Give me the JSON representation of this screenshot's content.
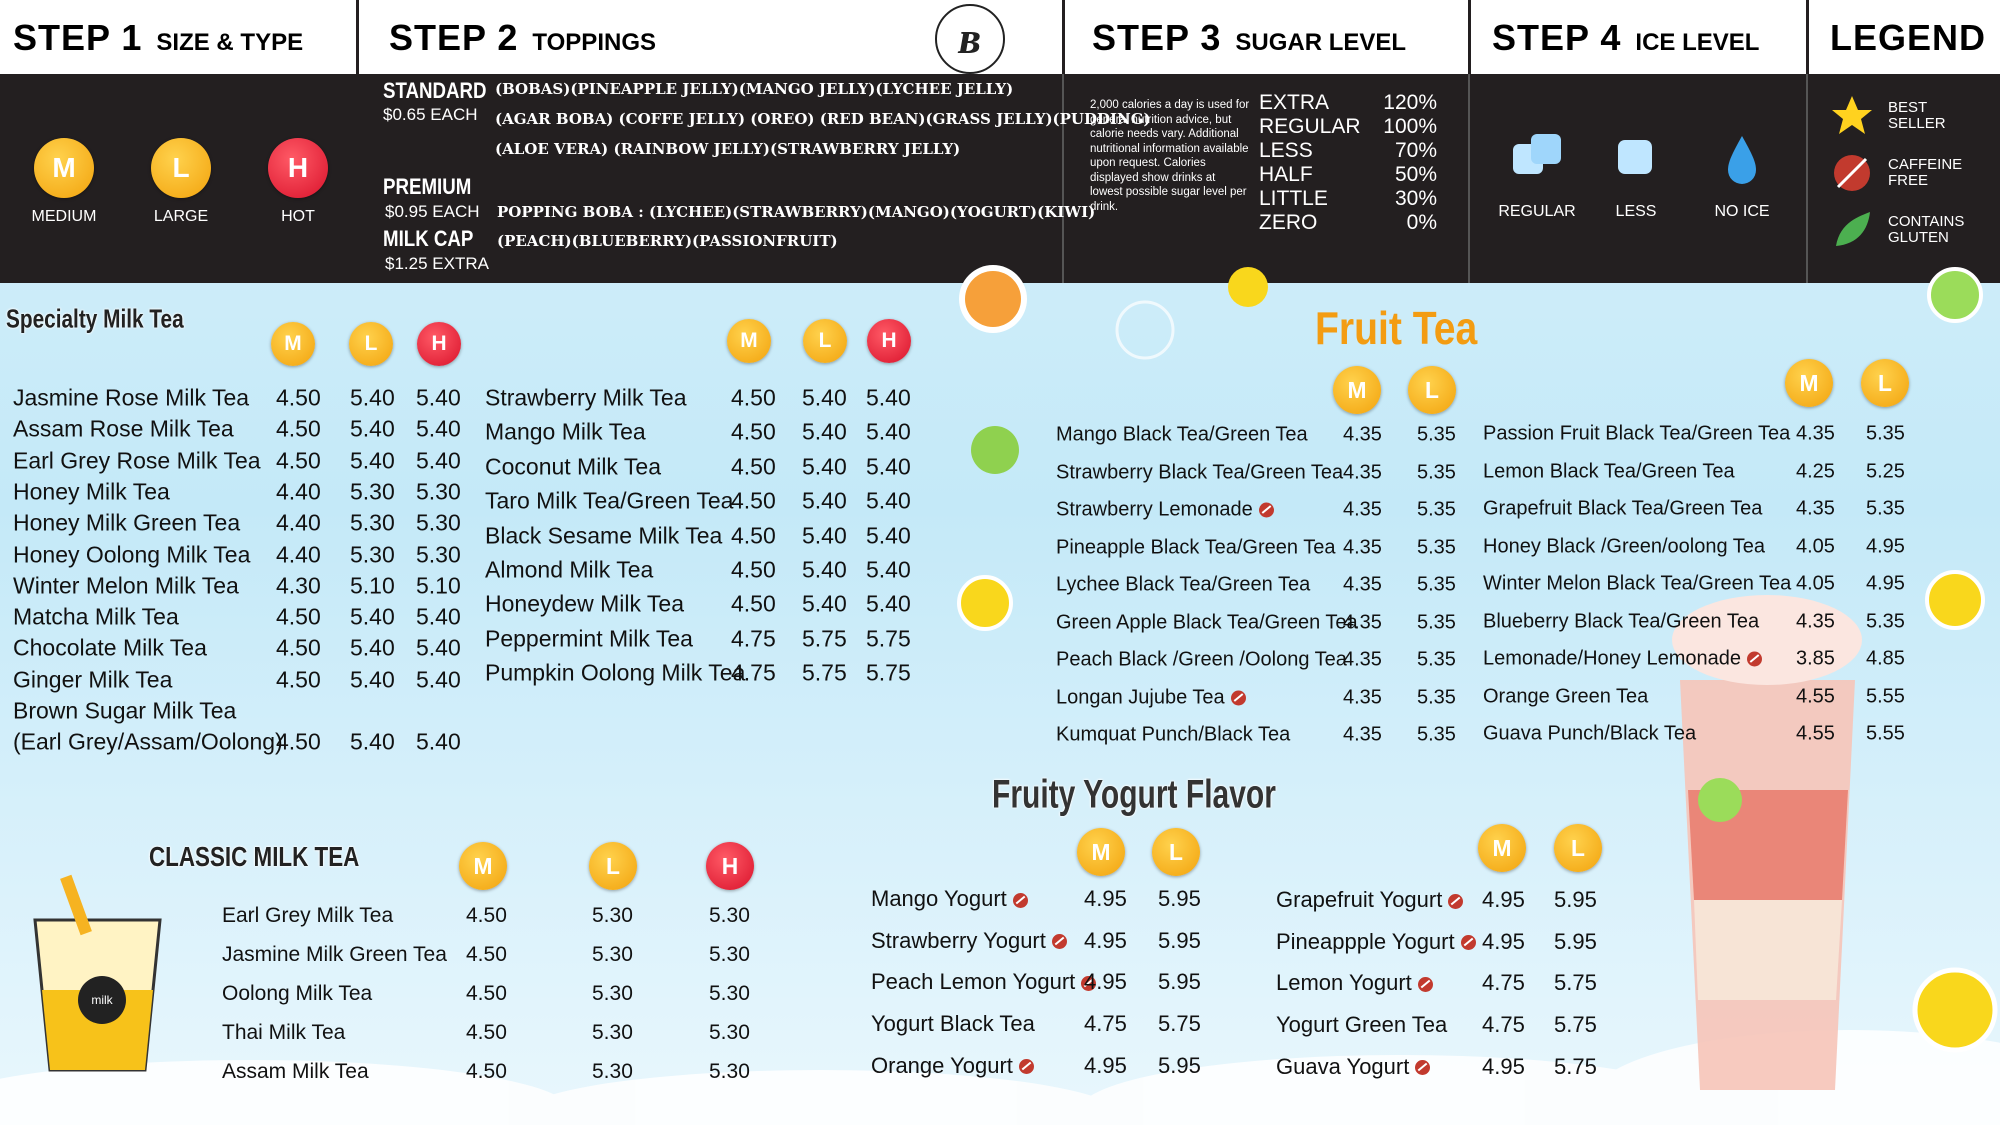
{
  "header": {
    "steps": [
      {
        "number": "STEP 1",
        "name": "SIZE & TYPE"
      },
      {
        "number": "STEP 2",
        "name": "TOPPINGS"
      },
      {
        "number": "STEP 3",
        "name": "SUGAR LEVEL"
      },
      {
        "number": "STEP 4",
        "name": "ICE LEVEL"
      },
      {
        "number": "LEGEND"
      }
    ],
    "sizes": [
      {
        "badge": "M",
        "label": "MEDIUM"
      },
      {
        "badge": "L",
        "label": "LARGE"
      },
      {
        "badge": "H",
        "label": "HOT"
      }
    ],
    "toppings": {
      "standard": {
        "name": "STANDARD",
        "price": "$0.65 EACH",
        "lines": [
          "(BOBAS)(PINEAPPLE JELLY)(MANGO JELLY)(LYCHEE JELLY)",
          "(AGAR BOBA) (COFFE JELLY) (OREO) (RED BEAN)(GRASS JELLY)(PUDDING)",
          "(ALOE VERA)  (RAINBOW JELLY)(STRAWBERRY JELLY)"
        ]
      },
      "premium": {
        "name": "PREMIUM",
        "price": "$0.95 EACH",
        "lines": [
          "POPPING BOBA : (LYCHEE)(STRAWBERRY)(MANGO)(YOGURT)(KIWI)",
          "(PEACH)(BLUEBERRY)(PASSIONFRUIT)"
        ]
      },
      "milk_cap": {
        "name": "MILK CAP",
        "price": "$1.25 EXTRA"
      }
    },
    "sugar": {
      "note": "2,000 calories a day is used for general nutrition advice, but calorie needs vary. Additional nutritional information available upon request. Calories displayed show drinks at lowest possible sugar level per drink.",
      "levels": [
        {
          "name": "EXTRA",
          "percent": "120%"
        },
        {
          "name": "REGULAR",
          "percent": "100%"
        },
        {
          "name": "LESS",
          "percent": "70%"
        },
        {
          "name": "HALF",
          "percent": "50%"
        },
        {
          "name": "LITTLE",
          "percent": "30%"
        },
        {
          "name": "ZERO",
          "percent": "0%"
        }
      ]
    },
    "ice": [
      "REGULAR",
      "LESS",
      "NO ICE"
    ],
    "legend": [
      "BEST SELLER",
      "CAFFEINE FREE",
      "CONTAINS GLUTEN"
    ]
  },
  "menu": {
    "specialty": {
      "title": "Specialty Milk Tea",
      "columns": [
        {
          "sizes": [
            "M",
            "L",
            "H"
          ],
          "items": [
            {
              "name": "Jasmine Rose Milk Tea",
              "prices": [
                "4.50",
                "5.40",
                "5.40"
              ]
            },
            {
              "name": "Assam Rose Milk Tea",
              "prices": [
                "4.50",
                "5.40",
                "5.40"
              ]
            },
            {
              "name": "Earl Grey Rose Milk Tea",
              "prices": [
                "4.50",
                "5.40",
                "5.40"
              ]
            },
            {
              "name": "Honey Milk Tea",
              "prices": [
                "4.40",
                "5.30",
                "5.30"
              ]
            },
            {
              "name": "Honey Milk Green Tea",
              "prices": [
                "4.40",
                "5.30",
                "5.30"
              ]
            },
            {
              "name": "Honey Oolong Milk  Tea",
              "prices": [
                "4.40",
                "5.30",
                "5.30"
              ]
            },
            {
              "name": "Winter Melon Milk Tea",
              "prices": [
                "4.30",
                "5.10",
                "5.10"
              ]
            },
            {
              "name": "Matcha Milk Tea",
              "prices": [
                "4.50",
                "5.40",
                "5.40"
              ]
            },
            {
              "name": "Chocolate Milk Tea",
              "prices": [
                "4.50",
                "5.40",
                "5.40"
              ]
            },
            {
              "name": "Ginger Milk Tea",
              "prices": [
                "4.50",
                "5.40",
                "5.40"
              ]
            },
            {
              "name": "Brown Sugar Milk Tea",
              "detail": "(Earl Grey/Assam/Oolong)",
              "prices": [
                "4.50",
                "5.40",
                "5.40"
              ]
            }
          ]
        },
        {
          "sizes": [
            "M",
            "L",
            "H"
          ],
          "items": [
            {
              "name": "Strawberry  Milk Tea",
              "prices": [
                "4.50",
                "5.40",
                "5.40"
              ]
            },
            {
              "name": "Mango Milk Tea",
              "prices": [
                "4.50",
                "5.40",
                "5.40"
              ]
            },
            {
              "name": "Coconut Milk Tea",
              "prices": [
                "4.50",
                "5.40",
                "5.40"
              ]
            },
            {
              "name": "Taro Milk Tea/Green Tea",
              "prices": [
                "4.50",
                "5.40",
                "5.40"
              ]
            },
            {
              "name": "Black Sesame Milk Tea",
              "prices": [
                "4.50",
                "5.40",
                "5.40"
              ]
            },
            {
              "name": "Almond Milk Tea",
              "prices": [
                "4.50",
                "5.40",
                "5.40"
              ]
            },
            {
              "name": "Honeydew Milk Tea",
              "prices": [
                "4.50",
                "5.40",
                "5.40"
              ]
            },
            {
              "name": "Peppermint Milk Tea",
              "prices": [
                "4.75",
                "5.75",
                "5.75"
              ]
            },
            {
              "name": "Pumpkin Oolong Milk Tea",
              "prices": [
                "4.75",
                "5.75",
                "5.75"
              ]
            }
          ]
        }
      ]
    },
    "fruit_tea": {
      "title": "Fruit Tea",
      "columns": [
        {
          "sizes": [
            "M",
            "L"
          ],
          "items": [
            {
              "name": "Mango Black Tea/Green Tea",
              "prices": [
                "4.35",
                "5.35"
              ]
            },
            {
              "name": "Strawberry Black Tea/Green Tea",
              "prices": [
                "4.35",
                "5.35"
              ]
            },
            {
              "name": "Strawberry Lemonade",
              "caffeine_free": true,
              "prices": [
                "4.35",
                "5.35"
              ]
            },
            {
              "name": "Pineapple Black Tea/Green Tea",
              "prices": [
                "4.35",
                "5.35"
              ]
            },
            {
              "name": "Lychee Black Tea/Green Tea",
              "prices": [
                "4.35",
                "5.35"
              ]
            },
            {
              "name": "Green Apple Black Tea/Green Tea",
              "prices": [
                "4.35",
                "5.35"
              ]
            },
            {
              "name": "Peach Black /Green /Oolong Tea",
              "prices": [
                "4.35",
                "5.35"
              ]
            },
            {
              "name": "Longan Jujube Tea",
              "caffeine_free": true,
              "prices": [
                "4.35",
                "5.35"
              ]
            },
            {
              "name": "Kumquat Punch/Black Tea",
              "prices": [
                "4.35",
                "5.35"
              ]
            }
          ]
        },
        {
          "sizes": [
            "M",
            "L"
          ],
          "items": [
            {
              "name": "Passion Fruit Black Tea/Green Tea",
              "prices": [
                "4.35",
                "5.35"
              ]
            },
            {
              "name": "Lemon Black Tea/Green Tea",
              "prices": [
                "4.25",
                "5.25"
              ]
            },
            {
              "name": "Grapefruit Black Tea/Green Tea",
              "prices": [
                "4.35",
                "5.35"
              ]
            },
            {
              "name": "Honey Black /Green/oolong Tea",
              "prices": [
                "4.05",
                "4.95"
              ]
            },
            {
              "name": "Winter Melon Black Tea/Green Tea",
              "prices": [
                "4.05",
                "4.95"
              ]
            },
            {
              "name": "Blueberry Black Tea/Green Tea",
              "prices": [
                "4.35",
                "5.35"
              ]
            },
            {
              "name": "Lemonade/Honey Lemonade",
              "caffeine_free": true,
              "prices": [
                "3.85",
                "4.85"
              ]
            },
            {
              "name": "Orange Green Tea",
              "prices": [
                "4.55",
                "5.55"
              ]
            },
            {
              "name": "Guava Punch/Black Tea",
              "prices": [
                "4.55",
                "5.55"
              ]
            }
          ]
        }
      ]
    },
    "fruity_yogurt": {
      "title": "Fruity Yogurt Flavor",
      "columns": [
        {
          "sizes": [
            "M",
            "L"
          ],
          "items": [
            {
              "name": "Mango Yogurt",
              "caffeine_free": true,
              "prices": [
                "4.95",
                "5.95"
              ]
            },
            {
              "name": "Strawberry Yogurt",
              "caffeine_free": true,
              "prices": [
                "4.95",
                "5.95"
              ]
            },
            {
              "name": "Peach Lemon Yogurt",
              "caffeine_free": true,
              "prices": [
                "4.95",
                "5.95"
              ]
            },
            {
              "name": "Yogurt Black Tea",
              "prices": [
                "4.75",
                "5.75"
              ]
            },
            {
              "name": "Orange Yogurt",
              "caffeine_free": true,
              "prices": [
                "4.95",
                "5.95"
              ]
            }
          ]
        },
        {
          "sizes": [
            "M",
            "L"
          ],
          "items": [
            {
              "name": "Grapefruit Yogurt",
              "caffeine_free": true,
              "prices": [
                "4.95",
                "5.95"
              ]
            },
            {
              "name": "Pineappple Yogurt",
              "caffeine_free": true,
              "prices": [
                "4.95",
                "5.95"
              ]
            },
            {
              "name": "Lemon Yogurt",
              "caffeine_free": true,
              "prices": [
                "4.75",
                "5.75"
              ]
            },
            {
              "name": "Yogurt Green Tea",
              "prices": [
                "4.75",
                "5.75"
              ]
            },
            {
              "name": "Guava Yogurt",
              "caffeine_free": true,
              "prices": [
                "4.95",
                "5.75"
              ]
            }
          ]
        }
      ]
    },
    "classic": {
      "title": "CLASSIC MILK TEA",
      "columns": [
        {
          "sizes": [
            "M",
            "L",
            "H"
          ],
          "items": [
            {
              "name": "Earl Grey Milk Tea",
              "prices": [
                "4.50",
                "5.30",
                "5.30"
              ]
            },
            {
              "name": "Jasmine Milk Green Tea",
              "prices": [
                "4.50",
                "5.30",
                "5.30"
              ]
            },
            {
              "name": "Oolong Milk Tea",
              "prices": [
                "4.50",
                "5.30",
                "5.30"
              ]
            },
            {
              "name": "Thai Milk Tea",
              "prices": [
                "4.50",
                "5.30",
                "5.30"
              ]
            },
            {
              "name": "Assam Milk Tea",
              "prices": [
                "4.50",
                "5.30",
                "5.30"
              ]
            }
          ]
        }
      ]
    }
  }
}
